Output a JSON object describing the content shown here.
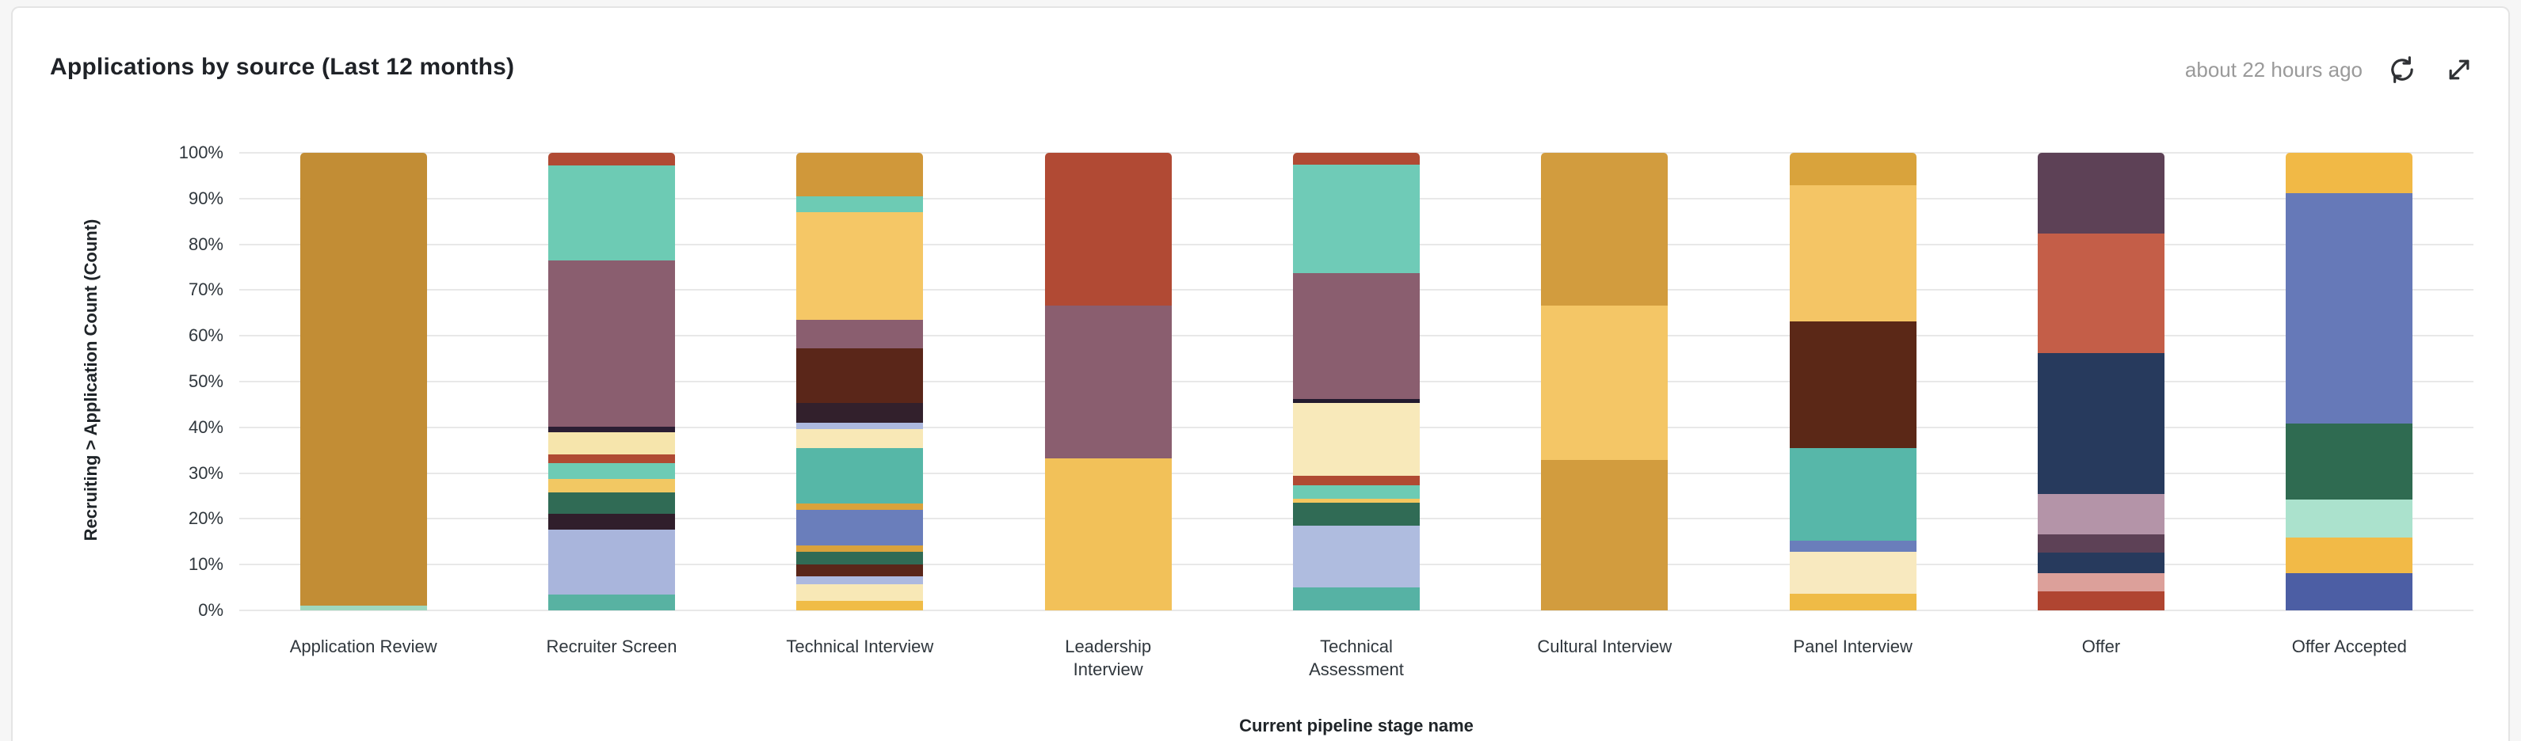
{
  "card": {
    "title": "Applications by source (Last 12 months)",
    "updated": "about 22 hours ago"
  },
  "chart_data": {
    "type": "bar",
    "subtype": "100%-stacked-vertical",
    "title": "Applications by source (Last 12 months)",
    "xlabel": "Current pipeline stage name",
    "ylabel": "Recruiting > Application Count (Count)",
    "ylim": [
      0,
      100
    ],
    "grid": true,
    "legend": "none",
    "y_ticks": [
      "100%",
      "90%",
      "80%",
      "70%",
      "60%",
      "50%",
      "40%",
      "30%",
      "20%",
      "10%",
      "0%"
    ],
    "categories": [
      "Application Review",
      "Recruiter Screen",
      "Technical Interview",
      "Leadership Interview",
      "Technical Assessment",
      "Cultural Interview",
      "Panel Interview",
      "Offer",
      "Offer Accepted"
    ],
    "note": "segments listed top-to-bottom as rendered; pct = share of bar height; sources are unlabeled in the screenshot (no legend), identified only by color",
    "bars": [
      {
        "category": "Application Review",
        "segments": [
          {
            "color": "#C28D35",
            "pct": 99.0
          },
          {
            "color": "#9FD8BE",
            "pct": 1.0
          }
        ]
      },
      {
        "category": "Recruiter Screen",
        "segments": [
          {
            "color": "#B04A33",
            "pct": 2.8
          },
          {
            "color": "#6DCBB4",
            "pct": 20.8
          },
          {
            "color": "#8A5E6F",
            "pct": 36.2
          },
          {
            "color": "#2B1E33",
            "pct": 1.2
          },
          {
            "color": "#F6E5AC",
            "pct": 4.9
          },
          {
            "color": "#B04A33",
            "pct": 1.9
          },
          {
            "color": "#6DCBB4",
            "pct": 3.4
          },
          {
            "color": "#F2C863",
            "pct": 3.0
          },
          {
            "color": "#306B55",
            "pct": 4.7
          },
          {
            "color": "#301E2B",
            "pct": 3.4
          },
          {
            "color": "#A9B5DC",
            "pct": 14.3
          },
          {
            "color": "#58B2A2",
            "pct": 3.4
          }
        ]
      },
      {
        "category": "Technical Interview",
        "segments": [
          {
            "color": "#D0983A",
            "pct": 9.5
          },
          {
            "color": "#6DCBB4",
            "pct": 3.5
          },
          {
            "color": "#F5C766",
            "pct": 23.5
          },
          {
            "color": "#8A5E6F",
            "pct": 6.4
          },
          {
            "color": "#5A2619",
            "pct": 11.8
          },
          {
            "color": "#32202C",
            "pct": 4.4
          },
          {
            "color": "#ADB9DF",
            "pct": 1.4
          },
          {
            "color": "#F8E8B6",
            "pct": 4.1
          },
          {
            "color": "#56B7A7",
            "pct": 12.2
          },
          {
            "color": "#D9A23C",
            "pct": 1.4
          },
          {
            "color": "#6A7EBB",
            "pct": 7.8
          },
          {
            "color": "#D9A23C",
            "pct": 1.4
          },
          {
            "color": "#306B55",
            "pct": 2.7
          },
          {
            "color": "#5A2619",
            "pct": 2.7
          },
          {
            "color": "#ADB9DF",
            "pct": 1.7
          },
          {
            "color": "#F8E8B6",
            "pct": 3.7
          },
          {
            "color": "#F0BC47",
            "pct": 2.0
          }
        ]
      },
      {
        "category": "Leadership\nInterview",
        "segments": [
          {
            "color": "#B14A34",
            "pct": 33.4
          },
          {
            "color": "#8A5E6F",
            "pct": 33.3
          },
          {
            "color": "#F2C159",
            "pct": 33.3
          }
        ]
      },
      {
        "category": "Technical\nAssessment",
        "segments": [
          {
            "color": "#B04A33",
            "pct": 2.6
          },
          {
            "color": "#6FCBB7",
            "pct": 23.8
          },
          {
            "color": "#8A5E6F",
            "pct": 27.4
          },
          {
            "color": "#231A2E",
            "pct": 1.0
          },
          {
            "color": "#F8E9BA",
            "pct": 15.9
          },
          {
            "color": "#B04A33",
            "pct": 2.0
          },
          {
            "color": "#6DCBB4",
            "pct": 3.0
          },
          {
            "color": "#F4C75F",
            "pct": 0.9
          },
          {
            "color": "#306B55",
            "pct": 4.9
          },
          {
            "color": "#AFBCDF",
            "pct": 13.5
          },
          {
            "color": "#56B2A4",
            "pct": 5.1
          }
        ]
      },
      {
        "category": "Cultural Interview",
        "segments": [
          {
            "color": "#D29C3E",
            "pct": 33.4
          },
          {
            "color": "#F4C666",
            "pct": 33.8
          },
          {
            "color": "#D29C3E",
            "pct": 32.8
          }
        ]
      },
      {
        "category": "Panel Interview",
        "segments": [
          {
            "color": "#D9A33C",
            "pct": 7.1
          },
          {
            "color": "#F4C565",
            "pct": 29.7
          },
          {
            "color": "#5B2817",
            "pct": 27.7
          },
          {
            "color": "#57B7A9",
            "pct": 20.3
          },
          {
            "color": "#6A7EBB",
            "pct": 2.4
          },
          {
            "color": "#F8E9BF",
            "pct": 9.1
          },
          {
            "color": "#EFBB46",
            "pct": 3.7
          }
        ]
      },
      {
        "category": "Offer",
        "segments": [
          {
            "color": "#5D4156",
            "pct": 17.6
          },
          {
            "color": "#C45E48",
            "pct": 26.3
          },
          {
            "color": "#273A5D",
            "pct": 30.8
          },
          {
            "color": "#B494A8",
            "pct": 8.8
          },
          {
            "color": "#5D4156",
            "pct": 4.1
          },
          {
            "color": "#273A5D",
            "pct": 4.4
          },
          {
            "color": "#DCA09A",
            "pct": 4.1
          },
          {
            "color": "#B04531",
            "pct": 4.1
          }
        ]
      },
      {
        "category": "Offer Accepted",
        "segments": [
          {
            "color": "#F1B946",
            "pct": 8.8
          },
          {
            "color": "#6679B8",
            "pct": 50.3
          },
          {
            "color": "#2F6B51",
            "pct": 16.6
          },
          {
            "color": "#ABE2CD",
            "pct": 8.4
          },
          {
            "color": "#F2BA47",
            "pct": 7.8
          },
          {
            "color": "#4C5EA4",
            "pct": 8.1
          }
        ]
      }
    ]
  }
}
